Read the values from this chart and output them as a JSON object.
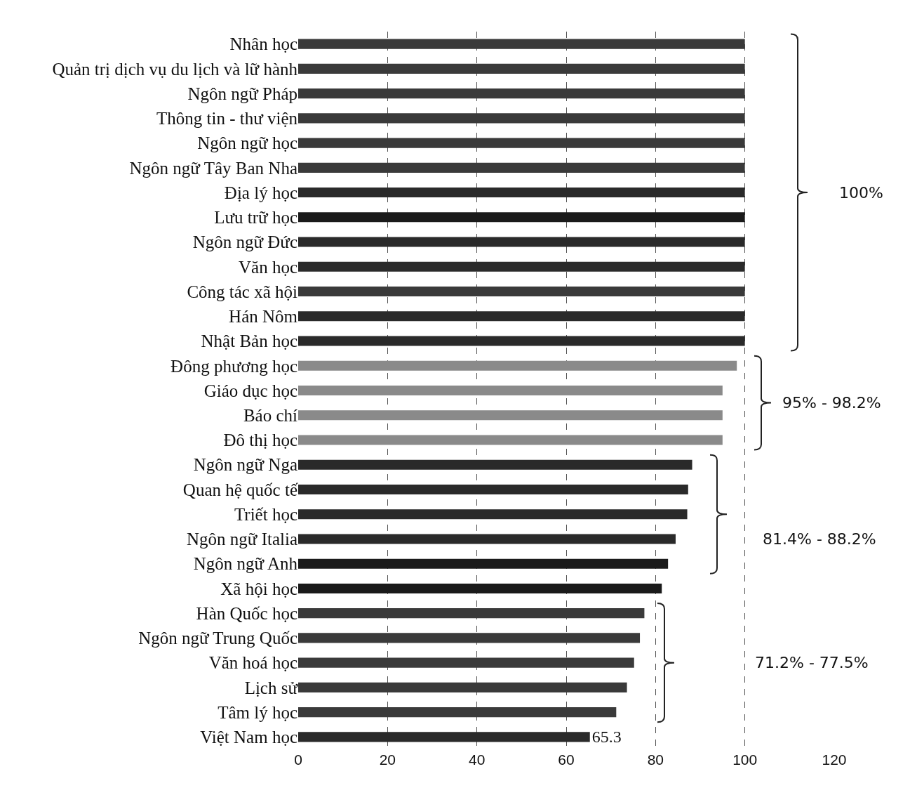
{
  "chart_data": {
    "type": "bar",
    "orientation": "horizontal",
    "categories": [
      "Nhân học",
      "Quản trị dịch vụ du lịch và lữ hành",
      "Ngôn ngữ Pháp",
      "Thông tin - thư viện",
      "Ngôn ngữ học",
      "Ngôn ngữ Tây Ban Nha",
      "Địa lý học",
      "Lưu trữ học",
      "Ngôn ngữ Đức",
      "Văn học",
      "Công tác xã hội",
      "Hán Nôm",
      "Nhật Bản học",
      "Đông phương học",
      "Giáo dục học",
      "Báo chí",
      "Đô thị học",
      "Ngôn ngữ Nga",
      "Quan hệ quốc tế",
      "Triết học",
      "Ngôn ngữ Italia",
      "Ngôn ngữ Anh",
      "Xã hội học",
      "Hàn Quốc học",
      "Ngôn ngữ Trung Quốc",
      "Văn hoá học",
      "Lịch sử",
      "Tâm lý học",
      "Việt Nam học"
    ],
    "values": [
      100,
      100,
      100,
      100,
      100,
      100,
      100,
      100,
      100,
      100,
      100,
      100,
      100,
      98.2,
      95,
      95,
      95,
      88.2,
      87.3,
      87.1,
      84.5,
      82.8,
      81.4,
      77.5,
      76.5,
      75.2,
      73.6,
      71.2,
      65.3
    ],
    "colors": [
      "#3a3a3a",
      "#3a3a3a",
      "#3a3a3a",
      "#3a3a3a",
      "#3a3a3a",
      "#3a3a3a",
      "#2a2a2a",
      "#1a1a1a",
      "#2a2a2a",
      "#2a2a2a",
      "#3a3a3a",
      "#2a2a2a",
      "#2a2a2a",
      "#8a8a8a",
      "#8a8a8a",
      "#8a8a8a",
      "#8a8a8a",
      "#2a2a2a",
      "#2a2a2a",
      "#2a2a2a",
      "#2a2a2a",
      "#1a1a1a",
      "#1a1a1a",
      "#3a3a3a",
      "#3a3a3a",
      "#3a3a3a",
      "#3a3a3a",
      "#3a3a3a",
      "#2a2a2a"
    ],
    "value_labels": [
      null,
      null,
      null,
      null,
      null,
      null,
      null,
      null,
      null,
      null,
      null,
      null,
      null,
      null,
      null,
      null,
      null,
      null,
      null,
      null,
      null,
      null,
      null,
      null,
      null,
      null,
      null,
      null,
      "65.3"
    ],
    "xlim": [
      0,
      120
    ],
    "xticks": [
      0,
      20,
      40,
      60,
      80,
      100,
      120
    ],
    "grid": "x",
    "annotations": [
      "100%",
      "95% - 98.2%",
      "81.4% - 88.2%",
      "71.2% - 77.5%"
    ]
  }
}
